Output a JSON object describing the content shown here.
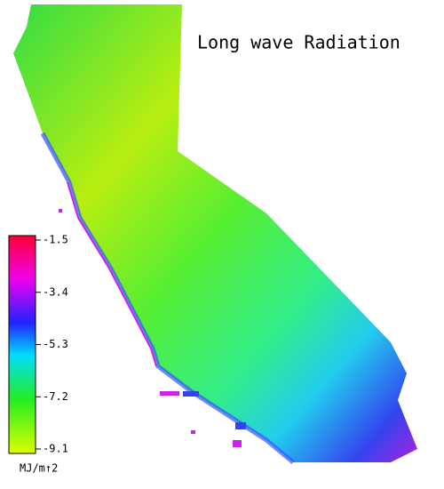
{
  "title": "Long wave Radiation",
  "legend": {
    "ticks": [
      -1.5,
      -3.4,
      -5.3,
      -7.2,
      -9.1
    ],
    "unit": "MJ/m↑2"
  }
}
